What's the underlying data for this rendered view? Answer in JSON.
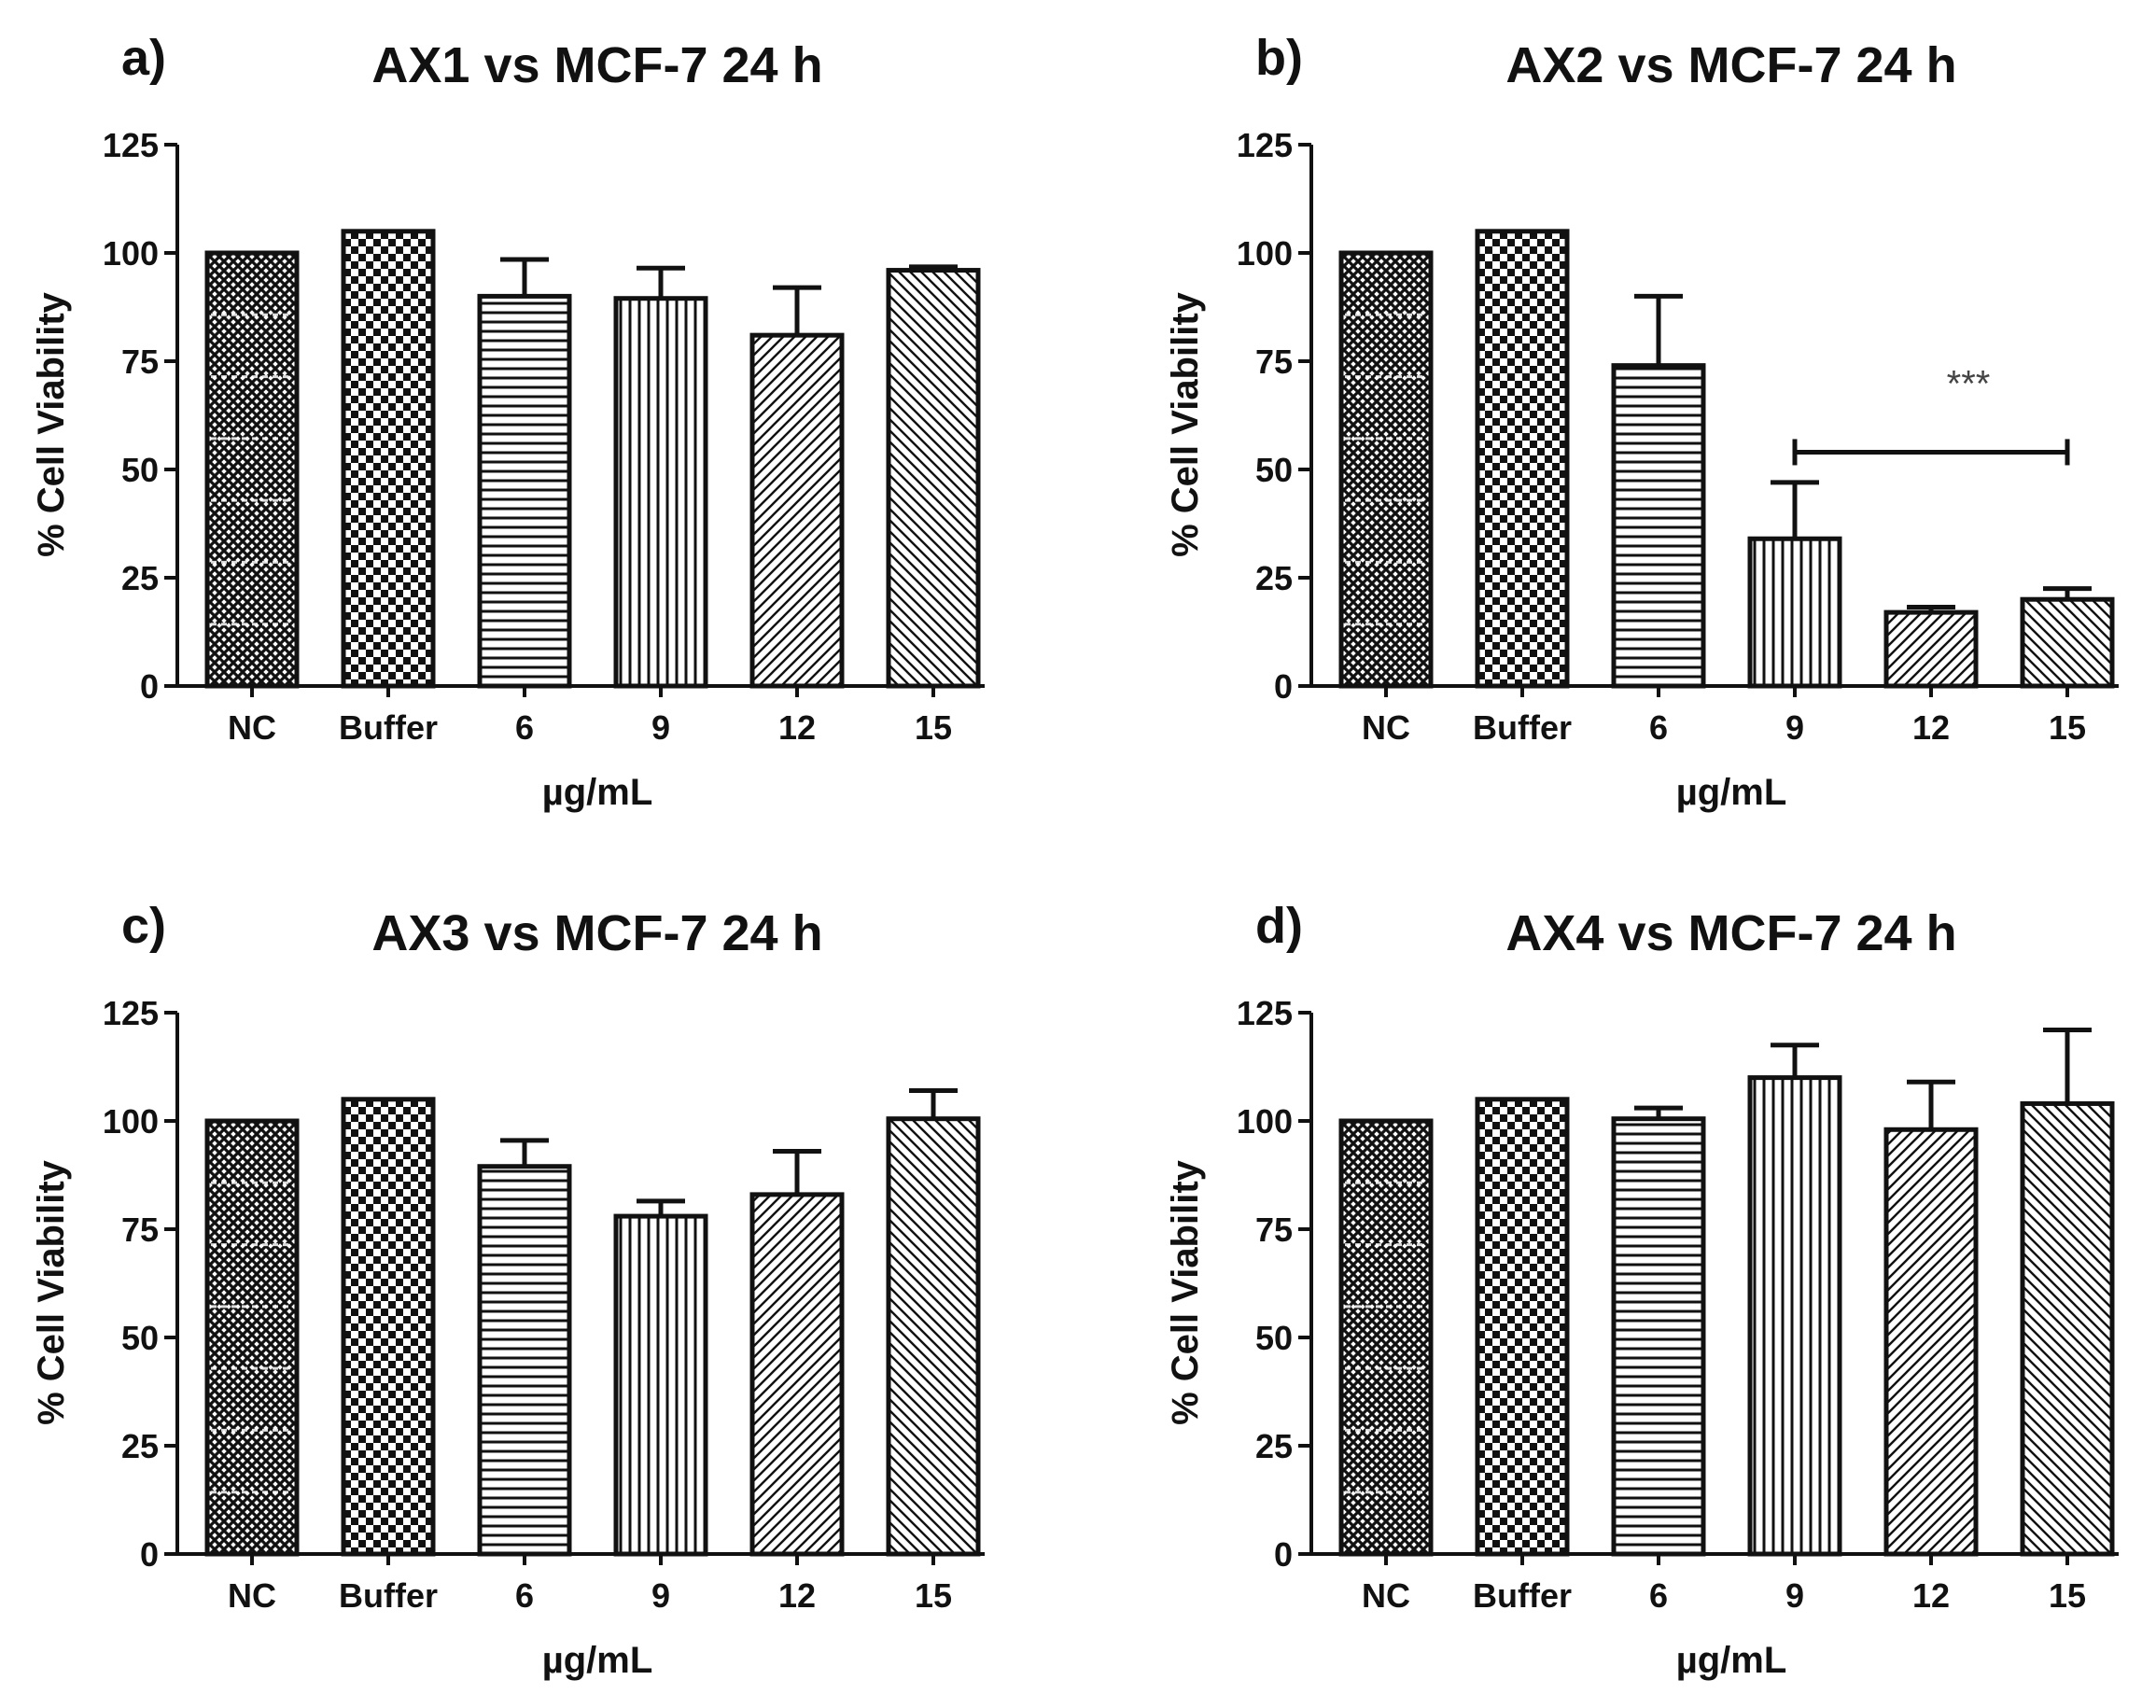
{
  "chart_data": [
    {
      "type": "bar",
      "panel": "a)",
      "title": "AX1 vs MCF-7 24 h",
      "xlabel": "µg/mL",
      "ylabel": "% Cell Viability",
      "ylim": [
        0,
        125
      ],
      "yticks": [
        0,
        25,
        50,
        75,
        100,
        125
      ],
      "categories": [
        "NC",
        "Buffer",
        "6",
        "9",
        "12",
        "15"
      ],
      "values": [
        100,
        105,
        90,
        89.5,
        81,
        96
      ],
      "errors": [
        0,
        0,
        8.5,
        7,
        11,
        0.8
      ],
      "annotation": null
    },
    {
      "type": "bar",
      "panel": "b)",
      "title": "AX2 vs MCF-7 24 h",
      "xlabel": "µg/mL",
      "ylabel": "% Cell Viability",
      "ylim": [
        0,
        125
      ],
      "yticks": [
        0,
        25,
        50,
        75,
        100,
        125
      ],
      "categories": [
        "NC",
        "Buffer",
        "6",
        "9",
        "12",
        "15"
      ],
      "values": [
        100,
        105,
        74,
        34,
        17,
        20
      ],
      "errors": [
        0,
        0,
        16,
        13,
        1.2,
        2.5
      ],
      "annotation": {
        "text": "***",
        "from": "9",
        "to": "15",
        "y": 54
      }
    },
    {
      "type": "bar",
      "panel": "c)",
      "title": "AX3 vs MCF-7 24 h",
      "xlabel": "µg/mL",
      "ylabel": "% Cell Viability",
      "ylim": [
        0,
        125
      ],
      "yticks": [
        0,
        25,
        50,
        75,
        100,
        125
      ],
      "categories": [
        "NC",
        "Buffer",
        "6",
        "9",
        "12",
        "15"
      ],
      "values": [
        100,
        105,
        89.5,
        78,
        83,
        100.5
      ],
      "errors": [
        0,
        0,
        6,
        3.5,
        10,
        6.5
      ],
      "annotation": null
    },
    {
      "type": "bar",
      "panel": "d)",
      "title": "AX4 vs MCF-7 24 h",
      "xlabel": "µg/mL",
      "ylabel": "% Cell Viability",
      "ylim": [
        0,
        125
      ],
      "yticks": [
        0,
        25,
        50,
        75,
        100,
        125
      ],
      "categories": [
        "NC",
        "Buffer",
        "6",
        "9",
        "12",
        "15"
      ],
      "values": [
        100,
        105,
        100.5,
        110,
        98,
        104
      ],
      "errors": [
        0,
        0,
        2.5,
        7.5,
        11,
        17
      ],
      "annotation": null
    }
  ]
}
